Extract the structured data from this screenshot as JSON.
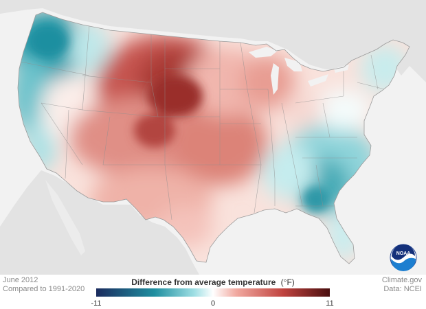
{
  "map": {
    "period": "June 2012",
    "baseline": "Compared to 1991-2020",
    "credit_site": "Climate.gov",
    "credit_data": "Data: NCEI",
    "logo_text": "NOAA",
    "legend": {
      "title": "Difference from average temperature",
      "unit": "(°F)",
      "min_label": "-11",
      "mid_label": "0",
      "max_label": "11",
      "min": -11,
      "max": 11
    },
    "colors": {
      "cold_extreme": "#1b2b5e",
      "cold": "#1f8fa0",
      "cool": "#9fdfe4",
      "neutral": "#ffffff",
      "warm": "#f1a9a0",
      "hot": "#c0433f",
      "hot_extreme": "#4a0f0f",
      "land_outside": "#e3e3e3",
      "ocean": "#f2f2f2"
    }
  }
}
